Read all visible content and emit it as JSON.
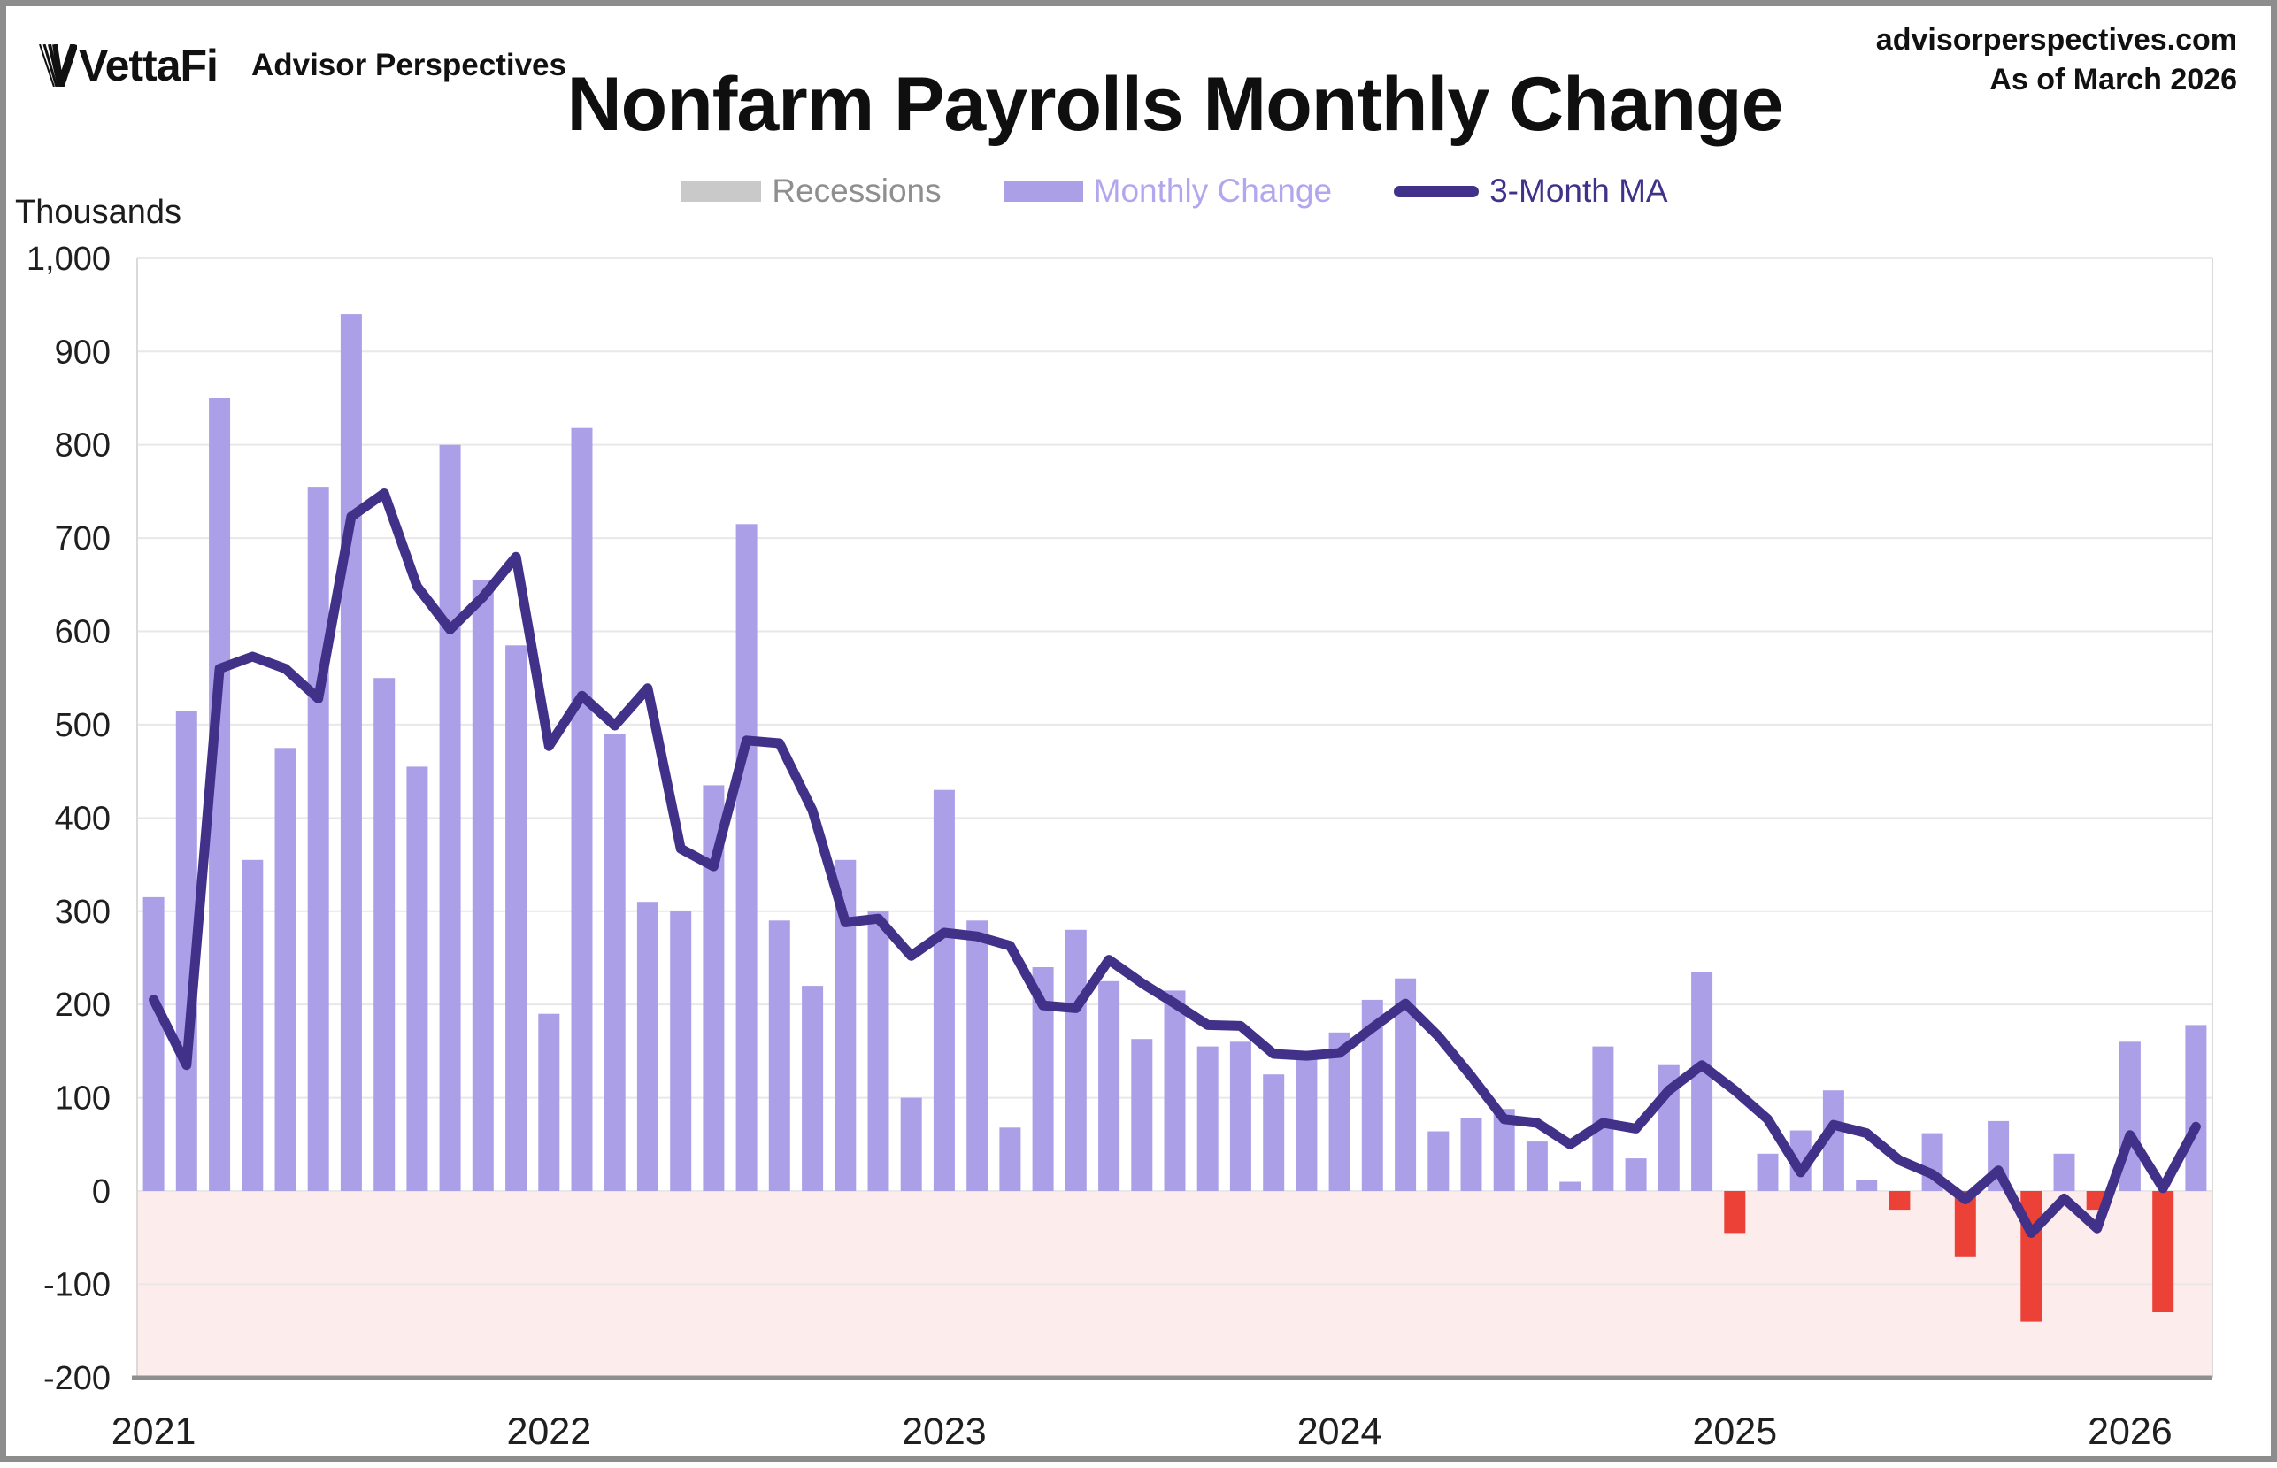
{
  "header": {
    "logo_text": "VettaFi",
    "logo_subtext": "Advisor Perspectives",
    "site": "advisorperspectives.com",
    "as_of": "As of March 2026"
  },
  "chart_data": {
    "type": "bar",
    "title": "Nonfarm Payrolls Monthly Change",
    "unit_label": "Thousands",
    "ylabel": "Thousands",
    "xlabel": "",
    "ylim": [
      -200,
      1000
    ],
    "ytick_step": 100,
    "ytick_labels": [
      "1,000",
      "900",
      "800",
      "700",
      "600",
      "500",
      "400",
      "300",
      "200",
      "100",
      "0",
      "-100",
      "-200"
    ],
    "grid": true,
    "legend_position": "top-center",
    "legend": [
      {
        "label": "Recessions",
        "swatch": "patch",
        "swatch_color": "#c9c9c9",
        "text_color": "#8f8f8f"
      },
      {
        "label": "Monthly Change",
        "swatch": "patch",
        "swatch_color": "#aba0e8",
        "text_color": "#b2a7ee"
      },
      {
        "label": "3-Month MA",
        "swatch": "line",
        "swatch_color": "#423189",
        "text_color": "#423189"
      }
    ],
    "x_start": "2021-01",
    "x_end": "2026-03",
    "x_years": [
      "2021",
      "2022",
      "2023",
      "2024",
      "2025",
      "2026"
    ],
    "negative_region_color": "#fdecec",
    "grid_color": "#e9e7e7",
    "axis_color": "#8f8f8f",
    "series": [
      {
        "name": "Monthly Change",
        "pos_color": "#aba0e8",
        "neg_color": "#ec4136",
        "values": [
          315,
          515,
          850,
          355,
          475,
          755,
          940,
          550,
          455,
          800,
          655,
          585,
          190,
          818,
          490,
          310,
          300,
          435,
          715,
          290,
          220,
          355,
          300,
          100,
          430,
          290,
          68,
          240,
          280,
          225,
          163,
          215,
          155,
          160,
          125,
          150,
          170,
          205,
          228,
          64,
          78,
          88,
          53,
          10,
          155,
          35,
          135,
          235,
          -45,
          40,
          65,
          108,
          12,
          -20,
          62,
          -70,
          75,
          -140,
          40,
          -20,
          160,
          -130,
          178
        ]
      },
      {
        "name": "3-Month MA",
        "color": "#423189",
        "values": [
          205,
          135,
          560,
          573,
          560,
          528,
          723,
          748,
          648,
          602,
          637,
          680,
          477,
          531,
          499,
          539,
          367,
          348,
          483,
          480,
          408,
          288,
          292,
          252,
          277,
          273,
          263,
          199,
          196,
          248,
          223,
          201,
          178,
          177,
          147,
          145,
          148,
          175,
          201,
          166,
          123,
          77,
          73,
          50,
          73,
          67,
          108,
          135,
          108,
          77,
          20,
          71,
          62,
          33,
          18,
          -9,
          22,
          -45,
          -8,
          -40,
          60,
          3,
          69
        ]
      }
    ]
  }
}
